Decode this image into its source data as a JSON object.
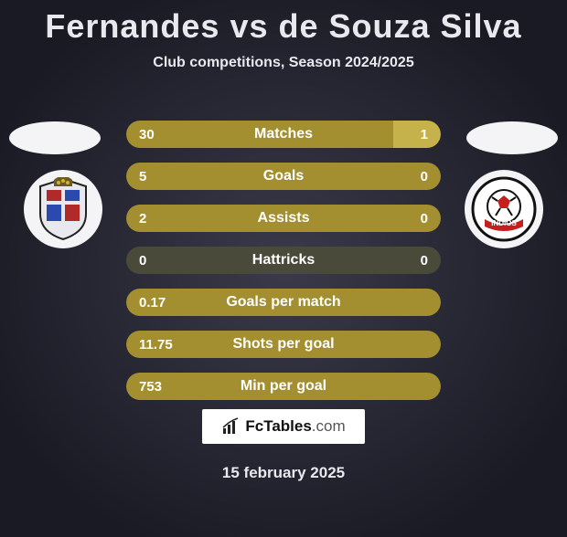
{
  "title": "Fernandes vs de Souza Silva",
  "subtitle": "Club competitions, Season 2024/2025",
  "date": "15 february 2025",
  "logo_text_main": "FcTables",
  "logo_text_suffix": ".com",
  "colors": {
    "bar_left": "#a38f2f",
    "bar_right": "#c6b24a",
    "bar_bg": "#4a4a3a",
    "bar_full": "#a38f2f"
  },
  "rows": [
    {
      "label": "Matches",
      "left": "30",
      "right": "1",
      "left_pct": 85,
      "right_pct": 15,
      "split": true
    },
    {
      "label": "Goals",
      "left": "5",
      "right": "0",
      "left_pct": 100,
      "right_pct": 0,
      "split": false
    },
    {
      "label": "Assists",
      "left": "2",
      "right": "0",
      "left_pct": 100,
      "right_pct": 0,
      "split": false
    },
    {
      "label": "Hattricks",
      "left": "0",
      "right": "0",
      "left_pct": 0,
      "right_pct": 0,
      "split": false
    },
    {
      "label": "Goals per match",
      "left": "0.17",
      "right": "",
      "left_pct": 100,
      "right_pct": 0,
      "split": false
    },
    {
      "label": "Shots per goal",
      "left": "11.75",
      "right": "",
      "left_pct": 100,
      "right_pct": 0,
      "split": false
    },
    {
      "label": "Min per goal",
      "left": "753",
      "right": "",
      "left_pct": 100,
      "right_pct": 0,
      "split": false
    }
  ],
  "crest_left_label": "SC Braga crest",
  "crest_right_label": "CF Indios crest"
}
